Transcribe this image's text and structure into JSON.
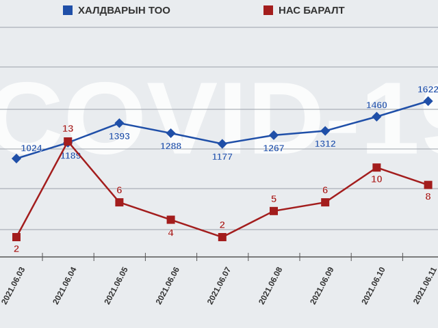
{
  "chart_data": {
    "type": "line",
    "watermark": "COVID-19",
    "categories": [
      "2021.06.03",
      "2021.06.04",
      "2021.06.05",
      "2021.06.06",
      "2021.06.07",
      "2021.06.08",
      "2021.06.09",
      "2021.06.10",
      "2021.06.11"
    ],
    "series": [
      {
        "name": "ХАЛДВАРЫН ТОО",
        "color": "#1f4fa8",
        "values": [
          1024,
          1189,
          1393,
          1288,
          1177,
          1267,
          1312,
          1460,
          1622
        ]
      },
      {
        "name": "НАС БАРАЛТ",
        "color": "#a31d1d",
        "values": [
          2,
          13,
          6,
          4,
          2,
          5,
          6,
          10,
          8
        ]
      }
    ]
  }
}
